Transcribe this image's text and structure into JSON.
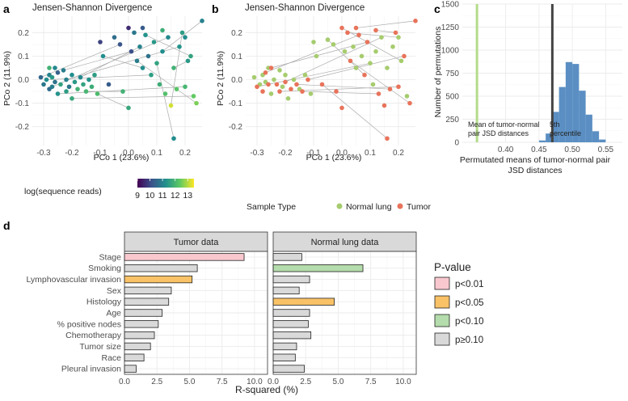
{
  "panels": {
    "a": {
      "letter": "a",
      "title": "Jensen-Shannon Divergence",
      "xlabel": "PCo 1 (23.6%)",
      "ylabel": "PCo 2 (11.9%)",
      "legend": {
        "title": "log(sequence reads)",
        "ticks": [
          "9",
          "10",
          "11",
          "12",
          "13"
        ]
      }
    },
    "b": {
      "letter": "b",
      "title": "Jensen-Shannon Divergence",
      "xlabel": "PCo 1 (23.6%)",
      "ylabel": "PCo 2 (11.9%)",
      "legend": {
        "title": "Sample Type",
        "items": [
          {
            "label": "Normal lung",
            "color": "#a6cc6e"
          },
          {
            "label": "Tumor",
            "color": "#e8735a"
          }
        ]
      }
    },
    "c": {
      "letter": "c",
      "xlabel_line1": "Permutated means of tumor-normal pair",
      "xlabel_line2": "JSD distances",
      "ylabel": "Number of permutations",
      "annot_mean_line1": "Mean of tumor-normal",
      "annot_mean_line2": "pair JSD distances",
      "annot_pct_line1": "5th",
      "annot_pct_line2": "percentile"
    },
    "d": {
      "letter": "d",
      "xlabel": "R-squared (%)",
      "legend": {
        "title": "P-value",
        "items": [
          {
            "label": "p<0.01",
            "color": "#f9c8cf"
          },
          {
            "label": "p<0.05",
            "color": "#f9c267"
          },
          {
            "label": "p<0.10",
            "color": "#b4dcac"
          },
          {
            "label": "p≥0.10",
            "color": "#d9d9d9"
          }
        ]
      }
    }
  },
  "chart_data": [
    {
      "type": "scatter",
      "id": "a",
      "title": "Jensen-Shannon Divergence",
      "xlabel": "PCo 1 (23.6%)",
      "ylabel": "PCo 2 (11.9%)",
      "xlim": [
        -0.34,
        0.26
      ],
      "ylim": [
        -0.28,
        0.27
      ],
      "xticks": [
        -0.3,
        -0.2,
        -0.1,
        0.0,
        0.1,
        0.2
      ],
      "xtick_labels": [
        "-0.3",
        "-0.2",
        "-0.1",
        "0.0",
        "0.1",
        "0.2"
      ],
      "yticks": [
        -0.2,
        -0.1,
        0.0,
        0.1,
        0.2
      ],
      "ytick_labels": [
        "-0.2",
        "-0.1",
        "0.0",
        "0.1",
        "0.2"
      ],
      "color_scale": {
        "name": "log(sequence reads)",
        "min": 9,
        "max": 13.5,
        "ticks": [
          9,
          10,
          11,
          12,
          13
        ]
      },
      "points": [
        [
          -0.31,
          0.01,
          10.5
        ],
        [
          -0.3,
          -0.02,
          10.8
        ],
        [
          -0.29,
          0.0,
          11.2
        ],
        [
          -0.28,
          -0.04,
          10.6
        ],
        [
          -0.28,
          0.02,
          11.0
        ],
        [
          -0.27,
          -0.03,
          10.9
        ],
        [
          -0.27,
          0.01,
          11.4
        ],
        [
          -0.26,
          -0.01,
          10.7
        ],
        [
          -0.26,
          0.05,
          11.1
        ],
        [
          -0.25,
          -0.06,
          11.3
        ],
        [
          -0.25,
          0.03,
          10.4
        ],
        [
          -0.24,
          -0.02,
          11.6
        ],
        [
          -0.23,
          0.04,
          10.9
        ],
        [
          -0.22,
          -0.05,
          11.5
        ],
        [
          -0.22,
          0.0,
          11.0
        ],
        [
          -0.21,
          -0.03,
          10.8
        ],
        [
          -0.2,
          0.02,
          11.2
        ],
        [
          -0.2,
          -0.08,
          11.7
        ],
        [
          -0.19,
          -0.01,
          11.4
        ],
        [
          -0.18,
          -0.04,
          11.9
        ],
        [
          -0.17,
          0.01,
          11.1
        ],
        [
          -0.16,
          -0.02,
          11.6
        ],
        [
          -0.15,
          -0.05,
          12.0
        ],
        [
          -0.14,
          0.0,
          11.3
        ],
        [
          -0.13,
          -0.03,
          11.8
        ],
        [
          -0.12,
          0.02,
          11.5
        ],
        [
          -0.11,
          -0.06,
          12.1
        ],
        [
          -0.09,
          0.1,
          11.2
        ],
        [
          -0.05,
          0.18,
          10.6
        ],
        [
          -0.03,
          0.15,
          10.2
        ],
        [
          0.0,
          0.22,
          9.6
        ],
        [
          0.01,
          0.12,
          10.1
        ],
        [
          0.02,
          0.2,
          10.8
        ],
        [
          0.03,
          0.08,
          10.9
        ],
        [
          0.04,
          0.14,
          11.0
        ],
        [
          0.05,
          0.05,
          11.2
        ],
        [
          0.06,
          0.19,
          11.3
        ],
        [
          0.07,
          0.1,
          10.7
        ],
        [
          0.08,
          0.02,
          11.5
        ],
        [
          0.09,
          0.16,
          11.4
        ],
        [
          0.1,
          0.07,
          11.6
        ],
        [
          0.11,
          -0.02,
          11.8
        ],
        [
          0.12,
          0.12,
          11.2
        ],
        [
          0.13,
          -0.06,
          12.2
        ],
        [
          0.14,
          0.18,
          11.1
        ],
        [
          0.15,
          -0.11,
          13.2
        ],
        [
          0.16,
          0.05,
          11.9
        ],
        [
          0.17,
          -0.04,
          12.3
        ],
        [
          0.18,
          0.14,
          11.3
        ],
        [
          0.19,
          0.2,
          11.5
        ],
        [
          0.2,
          -0.03,
          12.0
        ],
        [
          0.21,
          0.08,
          11.4
        ],
        [
          0.22,
          0.1,
          11.6
        ],
        [
          0.23,
          -0.07,
          12.4
        ],
        [
          0.24,
          -0.1,
          12.6
        ],
        [
          -0.07,
          -0.02,
          10.3
        ],
        [
          -0.02,
          -0.05,
          11.9
        ],
        [
          0.0,
          -0.12,
          11.7
        ],
        [
          0.16,
          -0.25,
          11.2
        ],
        [
          -0.1,
          0.16,
          9.9
        ],
        [
          0.05,
          0.22,
          10.3
        ],
        [
          0.12,
          0.21,
          11.8
        ],
        [
          0.26,
          0.25,
          11.0
        ],
        [
          0.2,
          0.18,
          11.2
        ],
        [
          -0.28,
          0.05,
          11.9
        ]
      ],
      "pair_lines": [
        [
          0,
          29
        ],
        [
          2,
          38
        ],
        [
          5,
          44
        ],
        [
          9,
          50
        ],
        [
          12,
          31
        ],
        [
          14,
          48
        ],
        [
          17,
          53
        ],
        [
          20,
          34
        ],
        [
          22,
          56
        ],
        [
          26,
          57
        ],
        [
          33,
          54
        ],
        [
          36,
          52
        ],
        [
          40,
          58
        ],
        [
          42,
          62
        ],
        [
          45,
          49
        ],
        [
          27,
          35
        ],
        [
          46,
          51
        ]
      ]
    },
    {
      "type": "scatter",
      "id": "b",
      "title": "Jensen-Shannon Divergence",
      "xlabel": "PCo 1 (23.6%)",
      "ylabel": "PCo 2 (11.9%)",
      "xlim": [
        -0.34,
        0.26
      ],
      "ylim": [
        -0.28,
        0.27
      ],
      "xticks": [
        -0.3,
        -0.2,
        -0.1,
        0.0,
        0.1,
        0.2
      ],
      "xtick_labels": [
        "-0.3",
        "-0.2",
        "-0.1",
        "0.0",
        "0.1",
        "0.2"
      ],
      "yticks": [
        -0.2,
        -0.1,
        0.0,
        0.1,
        0.2
      ],
      "ytick_labels": [
        "-0.2",
        "-0.1",
        "0.0",
        "0.1",
        "0.2"
      ],
      "series": [
        {
          "name": "Normal lung",
          "color": "#a6cc6e",
          "points": [
            [
              -0.31,
              0.01
            ],
            [
              -0.29,
              -0.02
            ],
            [
              -0.28,
              0.02
            ],
            [
              -0.27,
              -0.01
            ],
            [
              -0.26,
              0.05
            ],
            [
              -0.25,
              -0.06
            ],
            [
              -0.24,
              0.0
            ],
            [
              -0.22,
              0.04
            ],
            [
              -0.21,
              -0.03
            ],
            [
              -0.2,
              0.02
            ],
            [
              -0.19,
              -0.08
            ],
            [
              -0.17,
              0.0
            ],
            [
              -0.15,
              -0.04
            ],
            [
              -0.13,
              0.02
            ],
            [
              -0.11,
              -0.06
            ],
            [
              -0.09,
              0.1
            ],
            [
              -0.05,
              0.17
            ],
            [
              0.01,
              0.12
            ],
            [
              0.04,
              0.14
            ],
            [
              0.07,
              0.1
            ],
            [
              0.1,
              0.07
            ],
            [
              0.12,
              0.12
            ],
            [
              0.14,
              0.18
            ],
            [
              0.18,
              0.14
            ],
            [
              0.21,
              0.08
            ],
            [
              0.2,
              0.18
            ],
            [
              -0.1,
              0.16
            ],
            [
              0.05,
              0.05
            ],
            [
              0.16,
              0.05
            ],
            [
              0.11,
              -0.02
            ],
            [
              -0.03,
              0.15
            ],
            [
              0.23,
              -0.07
            ]
          ]
        },
        {
          "name": "Tumor",
          "color": "#e8735a",
          "points": [
            [
              -0.3,
              -0.03
            ],
            [
              -0.28,
              -0.05
            ],
            [
              -0.27,
              0.03
            ],
            [
              -0.26,
              -0.02
            ],
            [
              -0.25,
              0.05
            ],
            [
              -0.23,
              -0.02
            ],
            [
              -0.22,
              -0.05
            ],
            [
              -0.2,
              -0.01
            ],
            [
              -0.18,
              -0.04
            ],
            [
              -0.16,
              -0.02
            ],
            [
              -0.14,
              -0.05
            ],
            [
              -0.12,
              0.0
            ],
            [
              0.0,
              0.22
            ],
            [
              0.02,
              0.2
            ],
            [
              0.03,
              0.08
            ],
            [
              0.06,
              0.19
            ],
            [
              0.08,
              0.02
            ],
            [
              0.09,
              0.16
            ],
            [
              0.13,
              -0.06
            ],
            [
              0.15,
              -0.11
            ],
            [
              0.17,
              -0.04
            ],
            [
              0.19,
              0.2
            ],
            [
              0.2,
              -0.03
            ],
            [
              0.22,
              0.1
            ],
            [
              0.24,
              -0.1
            ],
            [
              0.12,
              0.21
            ],
            [
              0.05,
              0.22
            ],
            [
              0.26,
              0.25
            ],
            [
              0.16,
              -0.25
            ],
            [
              -0.02,
              -0.05
            ],
            [
              0.0,
              -0.12
            ],
            [
              -0.07,
              -0.02
            ]
          ]
        }
      ],
      "pair_lines": [
        [
          [
            -0.3,
            -0.03
          ],
          [
            0.1,
            0.07
          ]
        ],
        [
          [
            -0.27,
            0.03
          ],
          [
            0.06,
            0.19
          ]
        ],
        [
          [
            -0.25,
            0.05
          ],
          [
            0.09,
            0.16
          ]
        ],
        [
          [
            -0.22,
            -0.05
          ],
          [
            0.2,
            -0.03
          ]
        ],
        [
          [
            -0.2,
            -0.01
          ],
          [
            0.14,
            0.18
          ]
        ],
        [
          [
            -0.16,
            -0.02
          ],
          [
            0.17,
            -0.04
          ]
        ],
        [
          [
            -0.12,
            0.0
          ],
          [
            0.22,
            0.1
          ]
        ],
        [
          [
            0.0,
            0.22
          ],
          [
            0.21,
            0.08
          ]
        ],
        [
          [
            0.03,
            0.08
          ],
          [
            0.24,
            -0.1
          ]
        ],
        [
          [
            0.05,
            0.22
          ],
          [
            0.26,
            0.25
          ]
        ],
        [
          [
            0.12,
            0.21
          ],
          [
            0.19,
            0.2
          ]
        ],
        [
          [
            -0.14,
            -0.05
          ],
          [
            0.13,
            -0.06
          ]
        ],
        [
          [
            0.02,
            0.2
          ],
          [
            0.2,
            0.18
          ]
        ],
        [
          [
            -0.07,
            -0.02
          ],
          [
            0.16,
            -0.25
          ]
        ],
        [
          [
            -0.05,
            0.17
          ],
          [
            0.08,
            0.02
          ]
        ]
      ]
    },
    {
      "type": "bar",
      "id": "c",
      "subtype": "histogram",
      "xlabel": "Permutated means of tumor-normal pair JSD distances",
      "ylabel": "Number of permutations",
      "xlim": [
        0.335,
        0.575
      ],
      "ylim": [
        0,
        1500
      ],
      "xticks": [
        0.4,
        0.45,
        0.5,
        0.55
      ],
      "xtick_labels": [
        "0.40",
        "0.45",
        "0.50",
        "0.55"
      ],
      "yticks": [
        0,
        250,
        500,
        750,
        1000,
        1250,
        1500
      ],
      "ytick_labels": [
        "0",
        "250",
        "500",
        "750",
        "1000",
        "1250",
        "1500"
      ],
      "bin_width": 0.01,
      "bins": [
        0.455,
        0.465,
        0.475,
        0.485,
        0.495,
        0.505,
        0.515,
        0.525,
        0.535,
        0.545
      ],
      "values": [
        20,
        95,
        330,
        600,
        870,
        850,
        560,
        300,
        120,
        30
      ],
      "color": "#5b8fc3",
      "vlines": [
        {
          "x": 0.357,
          "label": "Mean of tumor-normal pair JSD distances",
          "color": "#b4dc8a"
        },
        {
          "x": 0.47,
          "label": "5th percentile",
          "color": "#444444"
        }
      ]
    },
    {
      "type": "bar",
      "id": "d",
      "orientation": "horizontal",
      "xlabel": "R-squared (%)",
      "xlim": [
        0,
        11
      ],
      "xticks": [
        0,
        2.5,
        5,
        7.5,
        10
      ],
      "xtick_labels": [
        "0.0",
        "2.5",
        "5.0",
        "7.5",
        "10.0"
      ],
      "categories": [
        "Stage",
        "Smoking",
        "Lymphovascular invasion",
        "Sex",
        "Histology",
        "Age",
        "% positive nodes",
        "Chemotherapy",
        "Tumor size",
        "Race",
        "Pleural invasion"
      ],
      "facets": [
        {
          "name": "Tumor data",
          "values": [
            9.2,
            5.6,
            5.2,
            3.6,
            3.4,
            2.9,
            2.6,
            2.3,
            2.0,
            1.5,
            0.9
          ],
          "pvalue_class": [
            "p<0.01",
            "p≥0.10",
            "p<0.05",
            "p≥0.10",
            "p≥0.10",
            "p≥0.10",
            "p≥0.10",
            "p≥0.10",
            "p≥0.10",
            "p≥0.10",
            "p≥0.10"
          ]
        },
        {
          "name": "Normal lung data",
          "values": [
            2.2,
            6.9,
            2.8,
            2.0,
            4.7,
            2.8,
            2.7,
            2.9,
            1.8,
            1.7,
            2.4
          ],
          "pvalue_class": [
            "p≥0.10",
            "p<0.10",
            "p≥0.10",
            "p≥0.10",
            "p<0.05",
            "p≥0.10",
            "p≥0.10",
            "p≥0.10",
            "p≥0.10",
            "p≥0.10",
            "p≥0.10"
          ]
        }
      ],
      "legend": {
        "title": "P-value",
        "colors": {
          "p<0.01": "#f9c8cf",
          "p<0.05": "#f9c267",
          "p<0.10": "#b4dcac",
          "p≥0.10": "#d9d9d9"
        }
      }
    }
  ]
}
